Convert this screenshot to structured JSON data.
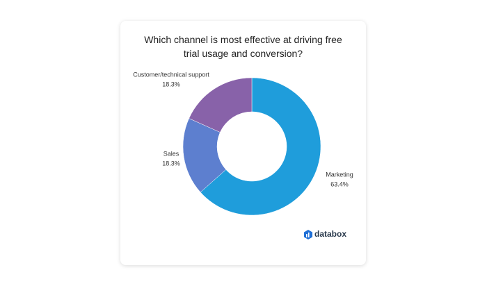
{
  "chart_data": {
    "type": "donut",
    "title": "Which channel is most effective at driving free trial usage and conversion?",
    "categories": [
      "Marketing",
      "Sales",
      "Customer/technical support"
    ],
    "values": [
      63.4,
      18.3,
      18.3
    ],
    "value_labels": [
      "63.4%",
      "18.3%",
      "18.3%"
    ],
    "colors": [
      "#1f9ddb",
      "#5d7fcf",
      "#8862a9"
    ]
  },
  "brand": "databox"
}
